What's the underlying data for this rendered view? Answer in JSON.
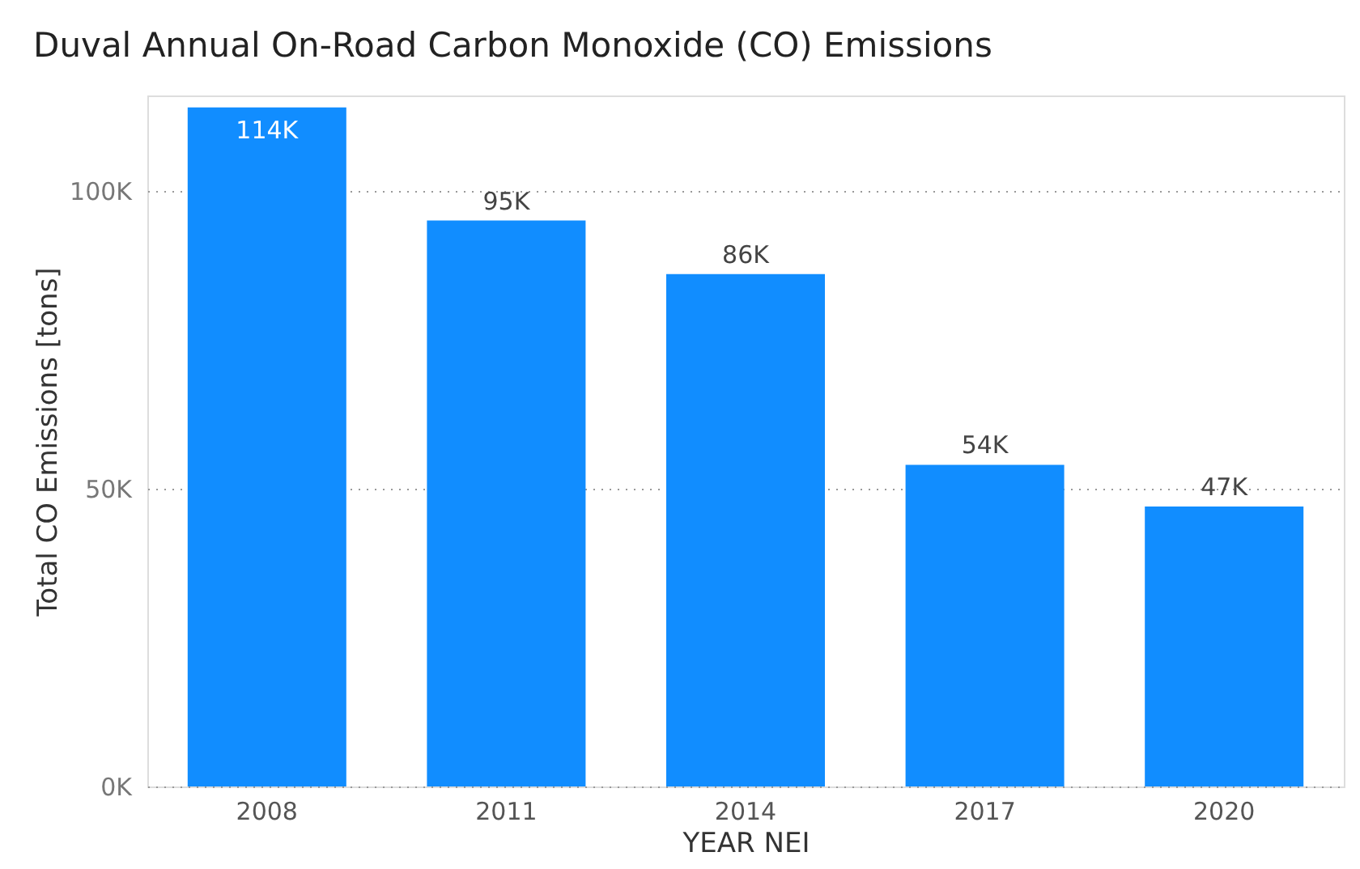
{
  "chart_data": {
    "type": "bar",
    "title": "Duval Annual On-Road Carbon Monoxide (CO) Emissions",
    "xlabel": "YEAR NEI",
    "ylabel": "Total CO Emissions [tons]",
    "categories": [
      "2008",
      "2011",
      "2014",
      "2017",
      "2020"
    ],
    "values": [
      114000,
      95000,
      86000,
      54000,
      47000
    ],
    "value_labels": [
      "114K",
      "95K",
      "86K",
      "54K",
      "47K"
    ],
    "color": "#118dff",
    "ylim": [
      0,
      116000
    ],
    "yticks": [
      {
        "value": 0,
        "label": "0K"
      },
      {
        "value": 50000,
        "label": "50K"
      },
      {
        "value": 100000,
        "label": "100K"
      }
    ],
    "grid": "y"
  }
}
